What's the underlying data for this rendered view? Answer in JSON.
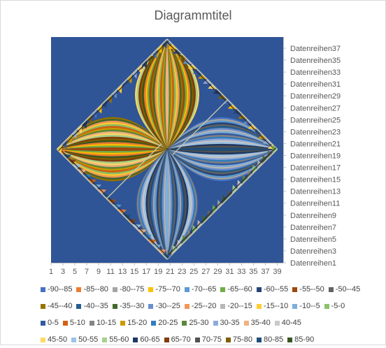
{
  "chart_data": {
    "type": "surface",
    "title": "Diagrammtitel",
    "x_tick_labels": [
      "1",
      "3",
      "5",
      "7",
      "9",
      "11",
      "13",
      "15",
      "17",
      "19",
      "21",
      "23",
      "25",
      "27",
      "29",
      "31",
      "33",
      "35",
      "37",
      "39"
    ],
    "y_tick_labels": [
      "Datenreihen1",
      "Datenreihen3",
      "Datenreihen5",
      "Datenreihen7",
      "Datenreihen9",
      "Datenreihen11",
      "Datenreihen13",
      "Datenreihen15",
      "Datenreihen17",
      "Datenreihen19",
      "Datenreihen21",
      "Datenreihen23",
      "Datenreihen25",
      "Datenreihen27",
      "Datenreihen29",
      "Datenreihen31",
      "Datenreihen33",
      "Datenreihen35",
      "Datenreihen37"
    ],
    "legend": [
      {
        "label": "-90--85",
        "color": "#4472c4"
      },
      {
        "label": "-85--80",
        "color": "#ed7d31"
      },
      {
        "label": "-80--75",
        "color": "#a5a5a5"
      },
      {
        "label": "-75--70",
        "color": "#ffc000"
      },
      {
        "label": "-70--65",
        "color": "#5b9bd5"
      },
      {
        "label": "-65--60",
        "color": "#70ad47"
      },
      {
        "label": "-60--55",
        "color": "#264478"
      },
      {
        "label": "-55--50",
        "color": "#9e480e"
      },
      {
        "label": "-50--45",
        "color": "#636363"
      },
      {
        "label": "-45--40",
        "color": "#997300"
      },
      {
        "label": "-40--35",
        "color": "#255e91"
      },
      {
        "label": "-35--30",
        "color": "#43682b"
      },
      {
        "label": "-30--25",
        "color": "#698ed0"
      },
      {
        "label": "-25--20",
        "color": "#f1975a"
      },
      {
        "label": "-20--15",
        "color": "#b7b7b7"
      },
      {
        "label": "-15--10",
        "color": "#ffcd33"
      },
      {
        "label": "-10--5",
        "color": "#7cafdd"
      },
      {
        "label": "-5-0",
        "color": "#8cc168"
      },
      {
        "label": "0-5",
        "color": "#335aa1"
      },
      {
        "label": "5-10",
        "color": "#d26012"
      },
      {
        "label": "10-15",
        "color": "#848484"
      },
      {
        "label": "15-20",
        "color": "#cc9a00"
      },
      {
        "label": "20-25",
        "color": "#327dc2"
      },
      {
        "label": "25-30",
        "color": "#5a8a39"
      },
      {
        "label": "30-35",
        "color": "#8faadc"
      },
      {
        "label": "35-40",
        "color": "#f4b183"
      },
      {
        "label": "40-45",
        "color": "#c9c9c9"
      },
      {
        "label": "45-50",
        "color": "#ffd966"
      },
      {
        "label": "50-55",
        "color": "#9dc3e6"
      },
      {
        "label": "55-60",
        "color": "#a9d18e"
      },
      {
        "label": "60-65",
        "color": "#1f3864"
      },
      {
        "label": "65-70",
        "color": "#843c0c"
      },
      {
        "label": "70-75",
        "color": "#525252"
      },
      {
        "label": "75-80",
        "color": "#7f6000"
      },
      {
        "label": "80-85",
        "color": "#1f4e79"
      },
      {
        "label": "85-90",
        "color": "#375623"
      }
    ],
    "plot_background": "#2f5597"
  }
}
